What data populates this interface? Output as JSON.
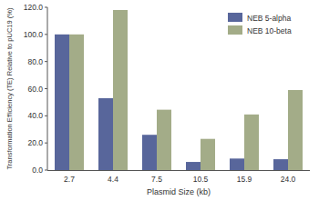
{
  "chart_data": {
    "type": "bar",
    "x_label": "Plasmid Size (kb)",
    "y_label": "Transformation Efficiency (TE) Relative to pUC19 (%)",
    "categories": [
      "2.7",
      "4.4",
      "7.5",
      "10.5",
      "15.9",
      "24.0"
    ],
    "series": [
      {
        "name": "NEB 5-alpha",
        "color": "#58669b",
        "values": [
          100,
          53,
          26,
          6,
          8.5,
          8
        ]
      },
      {
        "name": "NEB 10-beta",
        "color": "#a3ac88",
        "values": [
          100,
          118,
          44.5,
          23,
          41,
          59
        ]
      }
    ],
    "ylim": [
      0,
      120
    ],
    "yticks": [
      {
        "value": 0,
        "label": "0.0"
      },
      {
        "value": 20,
        "label": "20.0"
      },
      {
        "value": 40,
        "label": "40.0"
      },
      {
        "value": 60,
        "label": "60.0"
      },
      {
        "value": 80,
        "label": "80.0"
      },
      {
        "value": 100,
        "label": "100.0"
      },
      {
        "value": 120,
        "label": "120.0"
      }
    ],
    "grid": false,
    "legend": "top-right"
  }
}
